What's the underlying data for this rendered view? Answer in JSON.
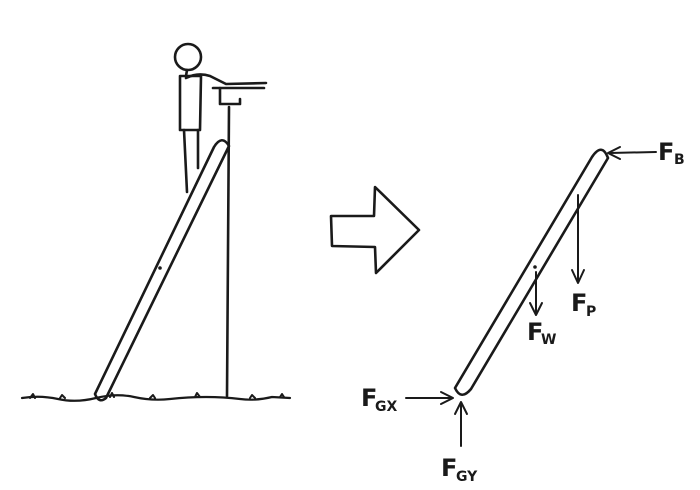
{
  "diagram": {
    "forces": {
      "fb": {
        "main": "F",
        "sub": "B"
      },
      "fp": {
        "main": "F",
        "sub": "P"
      },
      "fw": {
        "main": "F",
        "sub": "W"
      },
      "fgx": {
        "main": "F",
        "sub": "GX"
      },
      "fgy": {
        "main": "F",
        "sub": "GY"
      }
    },
    "colors": {
      "ink": "#1a1a1a",
      "background": "#ffffff"
    }
  }
}
